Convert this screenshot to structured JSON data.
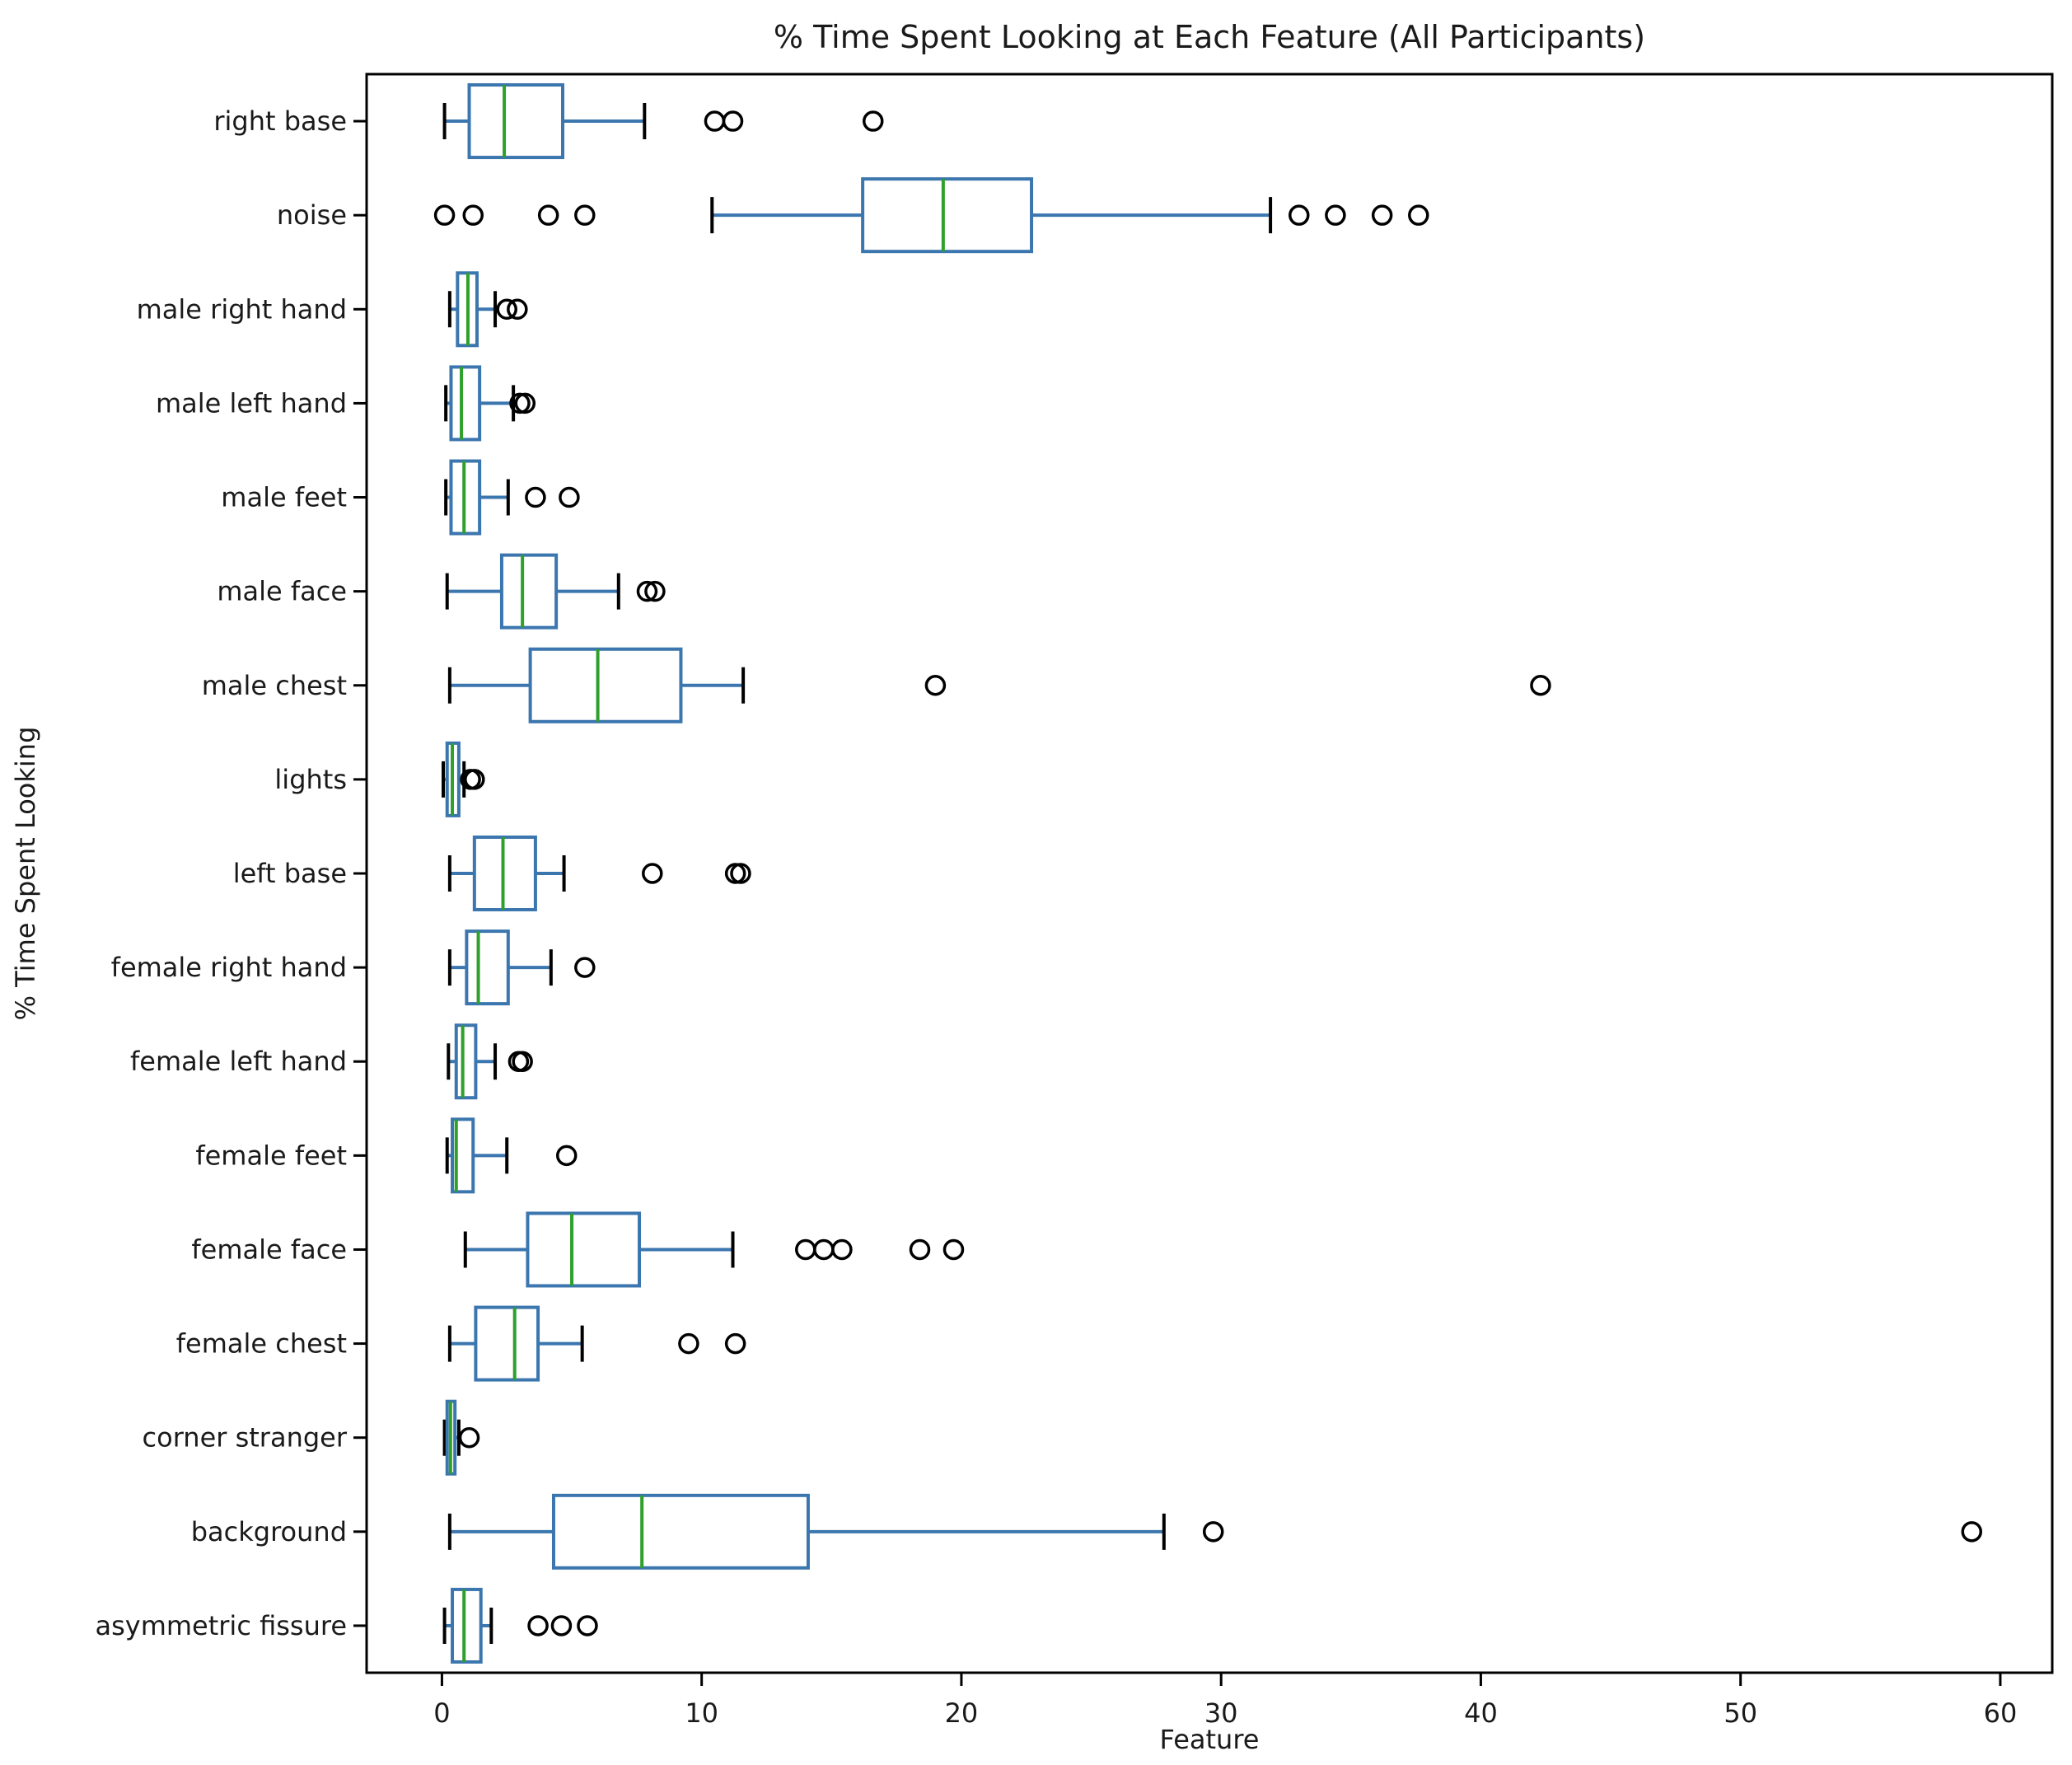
{
  "title": "% Time Spent Looking at Each Feature (All Participants)",
  "x_axis": {
    "label": "Feature",
    "ticks": [
      0,
      10,
      20,
      30,
      40,
      50,
      60
    ],
    "lim": [
      -2.9,
      62.0
    ]
  },
  "y_axis": {
    "label": "% Time Spent Looking"
  },
  "colors": {
    "box": "#3b76af",
    "whisker": "#3b76af",
    "median": "#2fa02c",
    "cap": "#000000",
    "outlier": "#000000",
    "spine": "#000000",
    "text": "#1a1a1a"
  },
  "chart_data": {
    "type": "boxplot-horizontal",
    "title": "% Time Spent Looking at Each Feature (All Participants)",
    "xlabel": "Feature",
    "ylabel": "% Time Spent Looking",
    "xlim": [
      -2.9,
      62.0
    ],
    "xticks": [
      0,
      10,
      20,
      30,
      40,
      50,
      60
    ],
    "grid": false,
    "categories_top_to_bottom": [
      "right base",
      "noise",
      "male right hand",
      "male left hand",
      "male feet",
      "male face",
      "male chest",
      "lights",
      "left base",
      "female right hand",
      "female left hand",
      "female feet",
      "female face",
      "female chest",
      "corner stranger",
      "background",
      "asymmetric fissure"
    ],
    "boxes": [
      {
        "name": "right base",
        "whislo": 0.1,
        "q1": 1.05,
        "med": 2.4,
        "q3": 4.65,
        "whishi": 7.8,
        "fliers": [
          10.5,
          11.2,
          16.6
        ]
      },
      {
        "name": "noise",
        "whislo": 10.4,
        "q1": 16.2,
        "med": 19.3,
        "q3": 22.7,
        "whishi": 31.9,
        "fliers": [
          0.1,
          1.2,
          4.1,
          5.5,
          33.0,
          34.4,
          36.2,
          37.6
        ]
      },
      {
        "name": "male right hand",
        "whislo": 0.3,
        "q1": 0.6,
        "med": 1.0,
        "q3": 1.35,
        "whishi": 2.05,
        "fliers": [
          2.5,
          2.9
        ]
      },
      {
        "name": "male left hand",
        "whislo": 0.15,
        "q1": 0.35,
        "med": 0.75,
        "q3": 1.45,
        "whishi": 2.75,
        "fliers": [
          3.0,
          3.2
        ]
      },
      {
        "name": "male feet",
        "whislo": 0.15,
        "q1": 0.35,
        "med": 0.85,
        "q3": 1.45,
        "whishi": 2.55,
        "fliers": [
          3.6,
          4.9
        ]
      },
      {
        "name": "male face",
        "whislo": 0.2,
        "q1": 2.3,
        "med": 3.1,
        "q3": 4.4,
        "whishi": 6.8,
        "fliers": [
          7.9,
          8.2
        ]
      },
      {
        "name": "male chest",
        "whislo": 0.3,
        "q1": 3.4,
        "med": 6.0,
        "q3": 9.2,
        "whishi": 11.6,
        "fliers": [
          19.0,
          42.3
        ]
      },
      {
        "name": "lights",
        "whislo": 0.05,
        "q1": 0.2,
        "med": 0.4,
        "q3": 0.65,
        "whishi": 0.85,
        "fliers": [
          1.1,
          1.25
        ]
      },
      {
        "name": "left base",
        "whislo": 0.3,
        "q1": 1.25,
        "med": 2.35,
        "q3": 3.6,
        "whishi": 4.7,
        "fliers": [
          8.1,
          11.3,
          11.5
        ]
      },
      {
        "name": "female right hand",
        "whislo": 0.3,
        "q1": 0.95,
        "med": 1.4,
        "q3": 2.55,
        "whishi": 4.2,
        "fliers": [
          5.5
        ]
      },
      {
        "name": "female left hand",
        "whislo": 0.25,
        "q1": 0.55,
        "med": 0.8,
        "q3": 1.3,
        "whishi": 2.05,
        "fliers": [
          2.95,
          3.1
        ]
      },
      {
        "name": "female feet",
        "whislo": 0.2,
        "q1": 0.4,
        "med": 0.55,
        "q3": 1.2,
        "whishi": 2.5,
        "fliers": [
          4.8
        ]
      },
      {
        "name": "female face",
        "whislo": 0.9,
        "q1": 3.3,
        "med": 5.0,
        "q3": 7.6,
        "whishi": 11.2,
        "fliers": [
          14.0,
          14.7,
          15.4,
          18.4,
          19.7
        ]
      },
      {
        "name": "female chest",
        "whislo": 0.3,
        "q1": 1.3,
        "med": 2.8,
        "q3": 3.7,
        "whishi": 5.4,
        "fliers": [
          9.5,
          11.3
        ]
      },
      {
        "name": "corner stranger",
        "whislo": 0.1,
        "q1": 0.2,
        "med": 0.33,
        "q3": 0.5,
        "whishi": 0.65,
        "fliers": [
          1.05
        ]
      },
      {
        "name": "background",
        "whislo": 0.3,
        "q1": 4.3,
        "med": 7.7,
        "q3": 14.1,
        "whishi": 27.8,
        "fliers": [
          29.7,
          58.9
        ]
      },
      {
        "name": "asymmetric fissure",
        "whislo": 0.1,
        "q1": 0.4,
        "med": 0.85,
        "q3": 1.5,
        "whishi": 1.9,
        "fliers": [
          3.7,
          4.6,
          5.6
        ]
      }
    ]
  }
}
